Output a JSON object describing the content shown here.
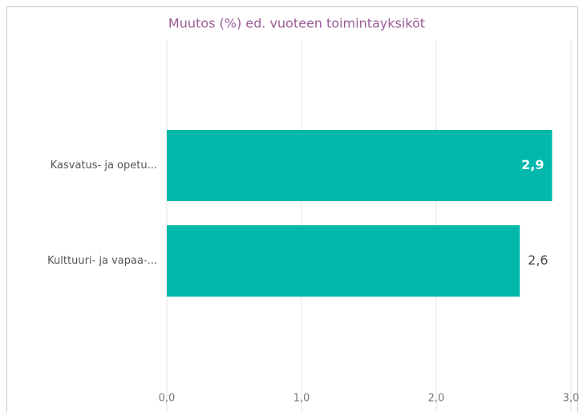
{
  "chart_data": {
    "type": "bar",
    "orientation": "horizontal",
    "title": "Muutos (%) ed. vuoteen toimintayksiköt",
    "categories": [
      "Kasvatus- ja opetu...",
      "Kulttuuri- ja vapaa-..."
    ],
    "values": [
      2.86,
      2.62
    ],
    "value_labels": [
      "2,9",
      "2,6"
    ],
    "color": "#01b8aa",
    "xlim": [
      0,
      3
    ],
    "xticks": [
      {
        "value": 0,
        "label": "0,0"
      },
      {
        "value": 1,
        "label": "1,0"
      },
      {
        "value": 2,
        "label": "2,0"
      },
      {
        "value": 3,
        "label": "3,0"
      }
    ],
    "grid": true
  }
}
